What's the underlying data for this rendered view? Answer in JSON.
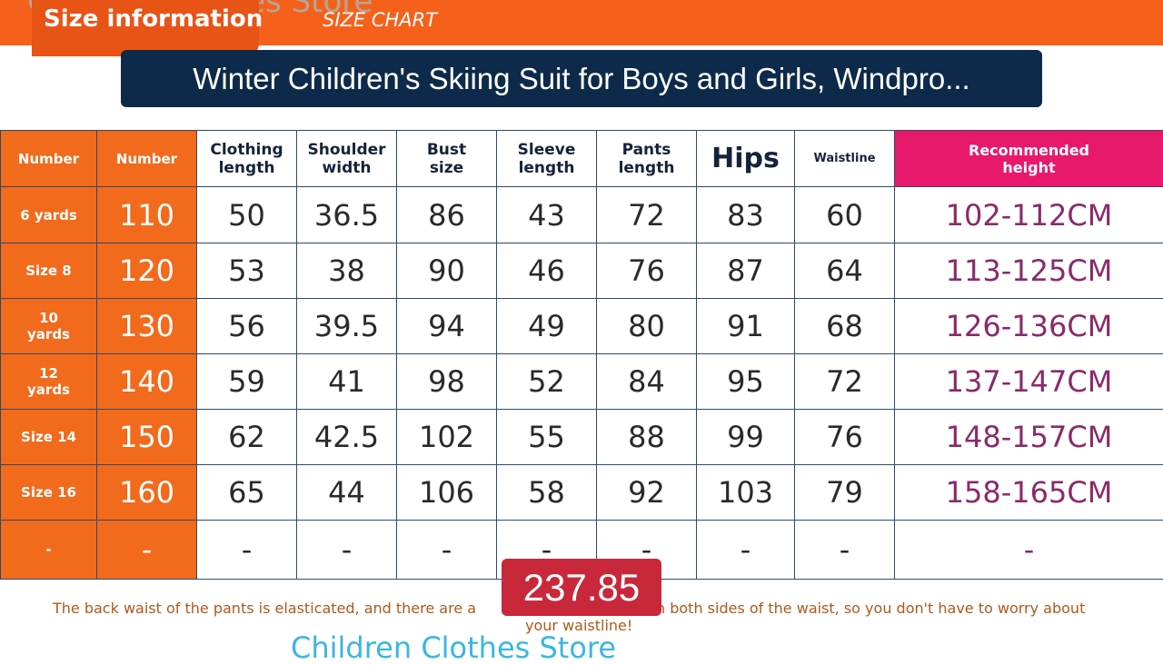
{
  "banner": {
    "store": "Children Clothes Store",
    "tab": "Size information",
    "subtitle": "SIZE CHART"
  },
  "overlay": {
    "title": "Winter Children's Skiing Suit for Boys and Girls, Windpro...",
    "price": "237.85"
  },
  "table": {
    "headers": [
      "Number",
      "Number",
      "Clothing length",
      "Shoulder width",
      "Bust size",
      "Sleeve length",
      "Pants length",
      "Hips",
      "Waistline",
      "Recommended height"
    ],
    "rows": [
      [
        "6 yards",
        "110",
        "50",
        "36.5",
        "86",
        "43",
        "72",
        "83",
        "60",
        "102-112CM"
      ],
      [
        "Size 8",
        "120",
        "53",
        "38",
        "90",
        "46",
        "76",
        "87",
        "64",
        "113-125CM"
      ],
      [
        "10 yards",
        "130",
        "56",
        "39.5",
        "94",
        "49",
        "80",
        "91",
        "68",
        "126-136CM"
      ],
      [
        "12 yards",
        "140",
        "59",
        "41",
        "98",
        "52",
        "84",
        "95",
        "72",
        "137-147CM"
      ],
      [
        "Size 14",
        "150",
        "62",
        "42.5",
        "102",
        "55",
        "88",
        "99",
        "76",
        "148-157CM"
      ],
      [
        "Size 16",
        "160",
        "65",
        "44",
        "106",
        "58",
        "92",
        "103",
        "79",
        "158-165CM"
      ],
      [
        "-",
        "-",
        "-",
        "-",
        "-",
        "-",
        "-",
        "-",
        "-",
        "-"
      ]
    ]
  },
  "footer": {
    "left": "The back waist of the pants is elasticated, and there are a",
    "right": "n both sides of the waist, so you don't have to worry about",
    "line2": "your waistline!",
    "store": "Children Clothes Store"
  }
}
